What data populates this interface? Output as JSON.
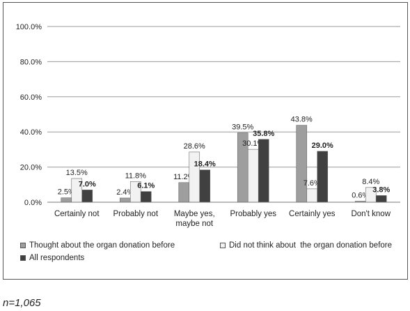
{
  "chart_data": {
    "type": "bar",
    "categories": [
      "Certainly not",
      "Probably not",
      "Maybe yes, maybe not",
      "Probably yes",
      "Certainly yes",
      "Don't know"
    ],
    "category_lines": [
      [
        "Certainly not"
      ],
      [
        "Probably not"
      ],
      [
        "Maybe yes,",
        "maybe not"
      ],
      [
        "Probably yes"
      ],
      [
        "Certainly yes"
      ],
      [
        "Don't know"
      ]
    ],
    "series": [
      {
        "name": "Thought about the organ donation before",
        "values": [
          2.5,
          2.4,
          11.2,
          39.5,
          43.8,
          0.6
        ],
        "labels": [
          "2.5%",
          "2.4%",
          "11.2%",
          "39.5%",
          "43.8%",
          "0.6%"
        ],
        "color": "#9e9e9e",
        "label_bold": false
      },
      {
        "name": "Did not think about  the organ donation before",
        "values": [
          13.5,
          11.8,
          28.6,
          30.1,
          7.6,
          8.4
        ],
        "labels": [
          "13.5%",
          "11.8%",
          "28.6%",
          "30.1%",
          "7.6%",
          "8.4%"
        ],
        "color": "#f2f2f2",
        "label_bold": false
      },
      {
        "name": "All respondents",
        "values": [
          7.0,
          6.1,
          18.4,
          35.8,
          29.0,
          3.8
        ],
        "labels": [
          "7.0%",
          "6.1%",
          "18.4%",
          "35.8%",
          "29.0%",
          "3.8%"
        ],
        "color": "#404040",
        "label_bold": true
      }
    ],
    "ylim": [
      0,
      100
    ],
    "yticks": [
      0,
      20,
      40,
      60,
      80,
      100
    ],
    "ytick_labels": [
      "0.0%",
      "20.0%",
      "40.0%",
      "60.0%",
      "80.0%",
      "100.0%"
    ],
    "grid": true,
    "legend_position": "bottom"
  },
  "note": "n=1,065"
}
